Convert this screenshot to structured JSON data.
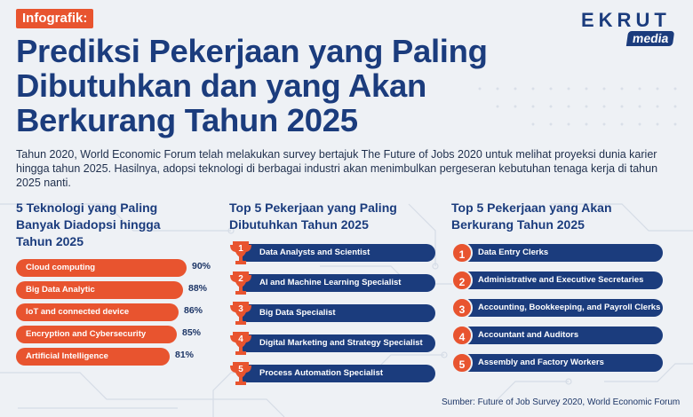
{
  "tag": "Infografik:",
  "title": "Prediksi Pekerjaan yang Paling Dibutuhkan dan yang Akan Berkurang Tahun 2025",
  "logo": {
    "word": "EKRUT",
    "sub": "media"
  },
  "intro": "Tahun 2020, World Economic Forum telah melakukan survey bertajuk The Future of Jobs 2020 untuk melihat proyeksi dunia karier hingga tahun 2025. Hasilnya, adopsi teknologi di berbagai industri akan menimbulkan pergeseran kebutuhan tenaga kerja di tahun 2025 nanti.",
  "tech": {
    "title": "5 Teknologi yang Paling Banyak Diadopsi hingga Tahun 2025",
    "items": [
      {
        "label": "Cloud computing",
        "value": "90%",
        "fraction": 0.9
      },
      {
        "label": "Big Data Analytic",
        "value": "88%",
        "fraction": 0.88
      },
      {
        "label": "IoT and connected device",
        "value": "86%",
        "fraction": 0.86
      },
      {
        "label": "Encryption and Cybersecurity",
        "value": "85%",
        "fraction": 0.85
      },
      {
        "label": "Artificial Intelligence",
        "value": "81%",
        "fraction": 0.81
      }
    ]
  },
  "top_jobs": {
    "title": "Top 5 Pekerjaan yang Paling Dibutuhkan Tahun 2025",
    "items": [
      {
        "rank": "1",
        "label": "Data Analysts and Scientist"
      },
      {
        "rank": "2",
        "label": "AI and Machine Learning Specialist"
      },
      {
        "rank": "3",
        "label": "Big Data Specialist"
      },
      {
        "rank": "4",
        "label": "Digital Marketing and Strategy Specialist"
      },
      {
        "rank": "5",
        "label": "Process Automation Specialist"
      }
    ]
  },
  "declining_jobs": {
    "title": "Top 5 Pekerjaan yang Akan Berkurang Tahun 2025",
    "items": [
      {
        "rank": "1",
        "label": "Data Entry Clerks"
      },
      {
        "rank": "2",
        "label": "Administrative and Executive Secretaries"
      },
      {
        "rank": "3",
        "label": "Accounting, Bookkeeping, and Payroll Clerks"
      },
      {
        "rank": "4",
        "label": "Accountant and Auditors"
      },
      {
        "rank": "5",
        "label": "Assembly and Factory Workers"
      }
    ]
  },
  "source": "Sumber: Future of Job Survey 2020, World Economic Forum",
  "colors": {
    "accent": "#e8542f",
    "navy": "#1b3c7d",
    "background": "#eef1f5"
  }
}
